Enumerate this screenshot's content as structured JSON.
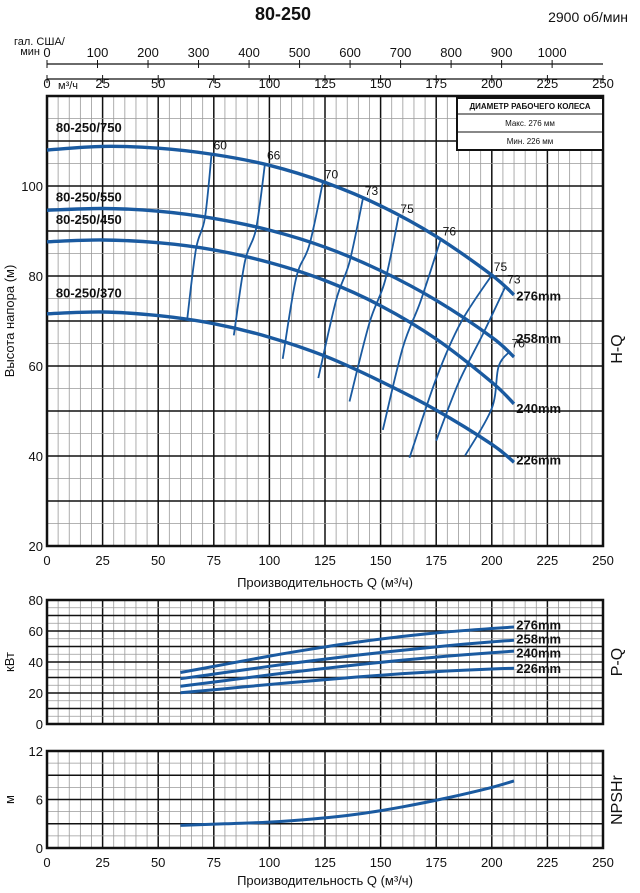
{
  "chart_data": {
    "type": "line",
    "title": "80-250",
    "speed": "2900 об/мин",
    "top_axes": {
      "gpm_label_line1": "гал. США/",
      "gpm_label_line2": "мин",
      "gpm_ticks": [
        0,
        100,
        200,
        300,
        400,
        500,
        600,
        700,
        800,
        900,
        1000
      ],
      "gpm_per_m3h": 4.4029,
      "m3h_label": "м³/ч",
      "m3h_ticks": [
        0,
        25,
        50,
        75,
        100,
        125,
        150,
        175,
        200,
        225,
        250
      ]
    },
    "legend": {
      "title": "ДИАМЕТР РАБОЧЕГО КОЛЕСА",
      "max": "Макс. 276 мм",
      "min": "Мин. 226 мм"
    },
    "xlabel": "Производительность Q (м³/ч)",
    "x_ticks": [
      0,
      25,
      50,
      75,
      100,
      125,
      150,
      175,
      200,
      225,
      250
    ],
    "xlim": [
      0,
      250
    ],
    "charts": [
      {
        "id": "hq",
        "panel_label": "H-Q",
        "ylabel": "Высота напора (м)",
        "ylim": [
          20,
          120
        ],
        "y_ticks": [
          20,
          40,
          60,
          80,
          100
        ],
        "series": [
          {
            "name": "276mm",
            "x": [
              0,
              25,
              50,
              75,
              100,
              125,
              150,
              175,
              200,
              210
            ],
            "y": [
              108,
              108.8,
              108.4,
              107,
              104.6,
              100.8,
              95.6,
              88.8,
              80.2,
              75.8
            ]
          },
          {
            "name": "258mm",
            "x": [
              0,
              25,
              50,
              75,
              100,
              125,
              150,
              175,
              200,
              210
            ],
            "y": [
              94.6,
              95,
              94.4,
              92.8,
              90.2,
              86.4,
              81.2,
              74.6,
              66.4,
              62
            ]
          },
          {
            "name": "240mm",
            "x": [
              0,
              25,
              50,
              75,
              100,
              125,
              150,
              175,
              200,
              210
            ],
            "y": [
              87.6,
              88,
              87.4,
              85.8,
              83,
              79,
              73.4,
              66,
              56.4,
              51.6
            ]
          },
          {
            "name": "226mm",
            "x": [
              0,
              25,
              50,
              75,
              100,
              125,
              150,
              175,
              200,
              210
            ],
            "y": [
              71.6,
              72,
              71.2,
              69.4,
              66.4,
              62.2,
              56.6,
              50.2,
              42.6,
              38.6
            ]
          }
        ],
        "model_labels": [
          {
            "text": "80-250/750",
            "x": 4,
            "y": 112
          },
          {
            "text": "80-250/550",
            "x": 4,
            "y": 96.6
          },
          {
            "text": "80-250/450",
            "x": 4,
            "y": 91.6
          },
          {
            "text": "80-250/370",
            "x": 4,
            "y": 75.2
          }
        ],
        "efficiency_curves": [
          {
            "label": "60",
            "x": [
              74,
              71,
              67,
              63
            ],
            "y": [
              107.2,
              92.9,
              86,
              70.2
            ]
          },
          {
            "label": "66",
            "x": [
              98,
              94,
              89,
              84
            ],
            "y": [
              105,
              90.5,
              83.2,
              66.8
            ]
          },
          {
            "label": "70",
            "x": [
              124,
              118,
              112,
              106
            ],
            "y": [
              100.8,
              86.9,
              79.5,
              61.6
            ]
          },
          {
            "label": "73",
            "x": [
              142,
              136,
              130,
              122
            ],
            "y": [
              97.1,
              83.1,
              74.6,
              57.3
            ]
          },
          {
            "label": "75",
            "x": [
              158,
              152,
              145,
              136
            ],
            "y": [
              93.1,
              78.9,
              69.6,
              52.1
            ]
          },
          {
            "label": "76",
            "x": [
              177,
              168,
              160,
              151
            ],
            "y": [
              88.1,
              74.4,
              64.1,
              45.8
            ]
          },
          {
            "label": "75",
            "x": [
              200,
              186,
              175,
              163
            ],
            "y": [
              80.2,
              69.6,
              57.2,
              39.6
            ]
          },
          {
            "label": "73",
            "x": [
              206,
              196,
              185,
              175
            ],
            "y": [
              77.5,
              67.1,
              56.2,
              43.4
            ]
          },
          {
            "label": "70",
            "x": [
              208,
              203,
              200,
              188
            ],
            "y": [
              63.2,
              59.8,
              50.6,
              40.1
            ]
          }
        ],
        "curve_labels": [
          {
            "text": "276mm",
            "x": 211,
            "y": 75.5
          },
          {
            "text": "258mm",
            "x": 211,
            "y": 66
          },
          {
            "text": "240mm",
            "x": 211,
            "y": 50.5
          },
          {
            "text": "226mm",
            "x": 211,
            "y": 39
          }
        ]
      },
      {
        "id": "pq",
        "panel_label": "P-Q",
        "ylabel": "кВт",
        "ylim": [
          0,
          80
        ],
        "y_ticks": [
          0,
          20,
          40,
          60,
          80
        ],
        "series": [
          {
            "name": "276mm",
            "x": [
              60,
              80,
              100,
              120,
              140,
              160,
              180,
              200,
              210
            ],
            "y": [
              33.2,
              38.5,
              43.8,
              48.6,
              52.9,
              56.5,
              59.4,
              61.6,
              62.6
            ]
          },
          {
            "name": "258mm",
            "x": [
              60,
              80,
              100,
              120,
              140,
              160,
              180,
              200,
              210
            ],
            "y": [
              29.2,
              33.2,
              37.2,
              41,
              44.5,
              47.6,
              50.5,
              53,
              54
            ]
          },
          {
            "name": "240mm",
            "x": [
              60,
              80,
              100,
              120,
              140,
              160,
              180,
              200,
              210
            ],
            "y": [
              24.3,
              28,
              31.7,
              35.1,
              38.3,
              41.2,
              43.8,
              46,
              47
            ]
          },
          {
            "name": "226mm",
            "x": [
              60,
              80,
              100,
              120,
              140,
              160,
              180,
              200,
              210
            ],
            "y": [
              20.1,
              22.8,
              25.5,
              28,
              30.4,
              32.5,
              34.2,
              35.5,
              36
            ]
          }
        ],
        "curve_labels": [
          {
            "text": "276mm",
            "x": 211,
            "y": 63.5
          },
          {
            "text": "258mm",
            "x": 211,
            "y": 54.5
          },
          {
            "text": "240mm",
            "x": 211,
            "y": 45.5
          },
          {
            "text": "226mm",
            "x": 211,
            "y": 35.5
          }
        ]
      },
      {
        "id": "npsh",
        "panel_label": "NPSHr",
        "ylabel": "м",
        "ylim": [
          0,
          12
        ],
        "y_ticks": [
          0,
          6,
          12
        ],
        "series": [
          {
            "name": "NPSHr",
            "x": [
              60,
              80,
              100,
              120,
              140,
              160,
              180,
              200,
              210
            ],
            "y": [
              2.8,
              3,
              3.2,
              3.6,
              4.2,
              5.1,
              6.2,
              7.5,
              8.3
            ]
          }
        ]
      }
    ]
  }
}
